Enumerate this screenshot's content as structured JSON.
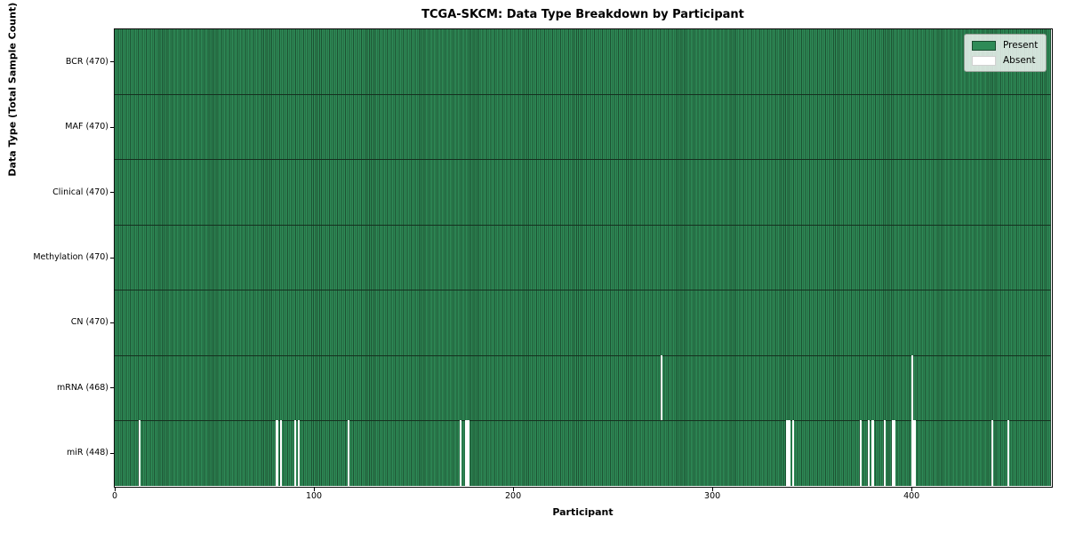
{
  "colors": {
    "present": "#2e8b57",
    "present_edge": "#1d5132",
    "absent": "#ffffff",
    "row_divider": "#15301f",
    "axis": "#000000"
  },
  "chart_data": {
    "type": "heatmap",
    "title": "TCGA-SKCM: Data Type Breakdown by Participant",
    "xlabel": "Participant",
    "ylabel": "Data Type (Total Sample Count)",
    "legend": {
      "present": "Present",
      "absent": "Absent"
    },
    "legend_position": "upper right",
    "x_range": [
      0,
      470
    ],
    "n_participants": 470,
    "x_ticks": [
      0,
      100,
      200,
      300,
      400
    ],
    "grid": false,
    "rows": [
      {
        "label": "BCR (470)",
        "data_type": "BCR",
        "total_samples": 470,
        "absent_participants": []
      },
      {
        "label": "MAF (470)",
        "data_type": "MAF",
        "total_samples": 470,
        "absent_participants": []
      },
      {
        "label": "Clinical (470)",
        "data_type": "Clinical",
        "total_samples": 470,
        "absent_participants": []
      },
      {
        "label": "Methylation (470)",
        "data_type": "Methylation",
        "total_samples": 470,
        "absent_participants": []
      },
      {
        "label": "CN (470)",
        "data_type": "CN",
        "total_samples": 470,
        "absent_participants": []
      },
      {
        "label": "mRNA (468)",
        "data_type": "mRNA",
        "total_samples": 468,
        "absent_participants": [
          274,
          400
        ]
      },
      {
        "label": "miR (448)",
        "data_type": "miR",
        "total_samples": 448,
        "absent_participants": [
          12,
          81,
          83,
          90,
          92,
          117,
          173,
          176,
          177,
          337,
          338,
          340,
          374,
          378,
          380,
          386,
          390,
          391,
          400,
          401,
          440,
          448
        ]
      }
    ]
  }
}
